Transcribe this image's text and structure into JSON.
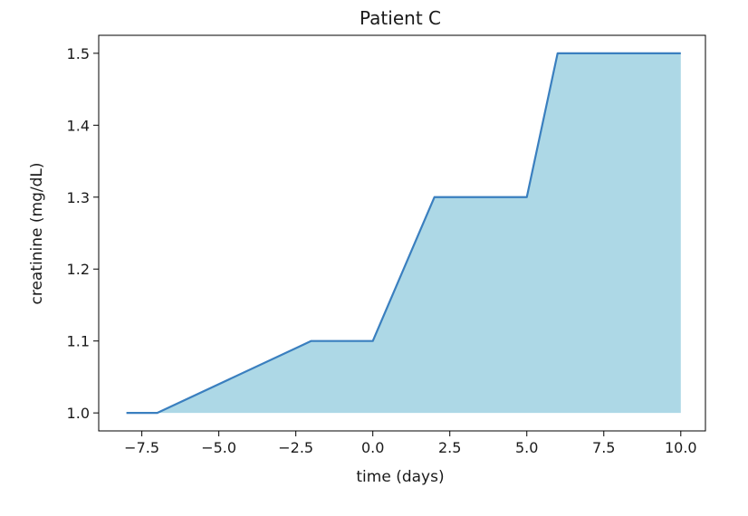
{
  "chart_data": {
    "type": "area",
    "title": "Patient C",
    "xlabel": "time (days)",
    "ylabel": "creatinine (mg/dL)",
    "xlim": [
      -8.9,
      10.8
    ],
    "ylim": [
      0.975,
      1.525
    ],
    "xticks": [
      -7.5,
      -5.0,
      -2.5,
      0.0,
      2.5,
      5.0,
      7.5,
      10.0
    ],
    "xtick_labels": [
      "−7.5",
      "−5.0",
      "−2.5",
      "0.0",
      "2.5",
      "5.0",
      "7.5",
      "10.0"
    ],
    "yticks": [
      1.0,
      1.1,
      1.2,
      1.3,
      1.4,
      1.5
    ],
    "ytick_labels": [
      "1.0",
      "1.1",
      "1.2",
      "1.3",
      "1.4",
      "1.5"
    ],
    "fill_baseline": 1.0,
    "grid": false,
    "series": [
      {
        "x": [
          -8,
          -7,
          -2,
          0,
          2,
          5,
          6,
          10
        ],
        "y": [
          1.0,
          1.0,
          1.1,
          1.1,
          1.3,
          1.3,
          1.5,
          1.5
        ],
        "line_color": "#3a7fbf",
        "fill_color": "#add8e6"
      }
    ]
  }
}
